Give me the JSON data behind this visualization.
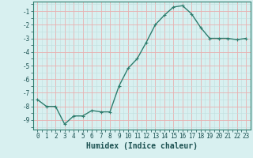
{
  "x": [
    0,
    1,
    2,
    3,
    4,
    5,
    6,
    7,
    8,
    9,
    10,
    11,
    12,
    13,
    14,
    15,
    16,
    17,
    18,
    19,
    20,
    21,
    22,
    23
  ],
  "y": [
    -7.5,
    -8.0,
    -8.0,
    -9.3,
    -8.7,
    -8.7,
    -8.3,
    -8.4,
    -8.4,
    -6.5,
    -5.2,
    -4.5,
    -3.3,
    -2.0,
    -1.3,
    -0.7,
    -0.6,
    -1.2,
    -2.2,
    -3.0,
    -3.0,
    -3.0,
    -3.1,
    -3.0
  ],
  "line_color": "#2e7d6e",
  "marker": "+",
  "marker_size": 3,
  "linewidth": 1.0,
  "bg_color": "#d8f0f0",
  "grid_color_major": "#e8b0b0",
  "grid_color_minor": "#c0dede",
  "xlabel": "Humidex (Indice chaleur)",
  "xlabel_fontsize": 7,
  "yticks": [
    -9,
    -8,
    -7,
    -6,
    -5,
    -4,
    -3,
    -2,
    -1
  ],
  "xticks": [
    0,
    1,
    2,
    3,
    4,
    5,
    6,
    7,
    8,
    9,
    10,
    11,
    12,
    13,
    14,
    15,
    16,
    17,
    18,
    19,
    20,
    21,
    22,
    23
  ],
  "ylim": [
    -9.7,
    -0.3
  ],
  "xlim": [
    -0.5,
    23.5
  ],
  "tick_fontsize": 5.5,
  "minor_xticks": [
    0.5,
    1.5,
    2.5,
    3.5,
    4.5,
    5.5,
    6.5,
    7.5,
    8.5,
    9.5,
    10.5,
    11.5,
    12.5,
    13.5,
    14.5,
    15.5,
    16.5,
    17.5,
    18.5,
    19.5,
    20.5,
    21.5,
    22.5
  ],
  "minor_yticks": [
    -9.5,
    -8.5,
    -7.5,
    -6.5,
    -5.5,
    -4.5,
    -3.5,
    -2.5,
    -1.5,
    -0.5
  ]
}
